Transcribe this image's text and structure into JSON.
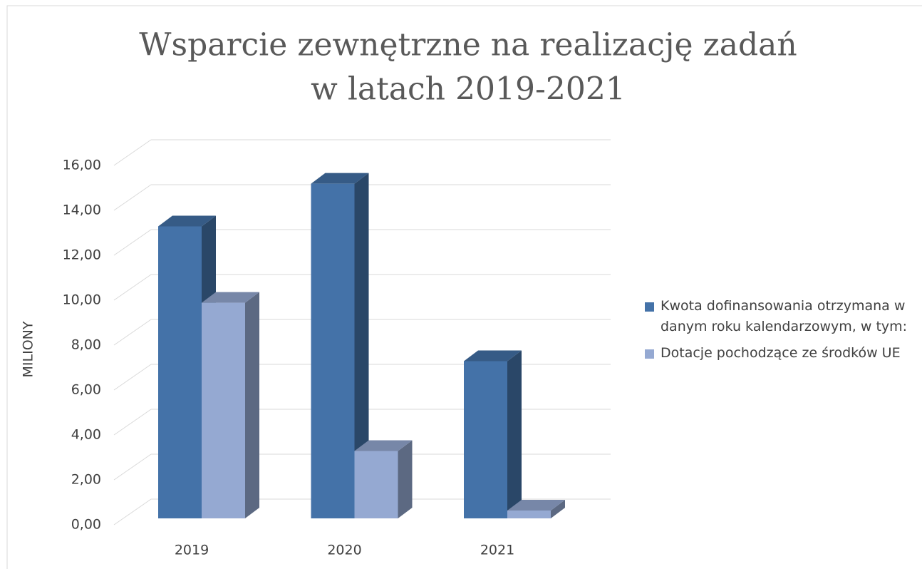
{
  "chart_data": {
    "type": "bar3d",
    "title": [
      "Wsparcie zewnętrzne na realizację zadań",
      "w latach 2019-2021"
    ],
    "y_label": "MILIONY",
    "categories": [
      "2019",
      "2020",
      "2021"
    ],
    "series": [
      {
        "name": "Kwota dofinansowania otrzymana w danym roku kalendarzowym, w tym:",
        "color": "#4472a8",
        "values": [
          13.0,
          14.9,
          7.0
        ]
      },
      {
        "name": "Dotacje pochodzące ze środków UE",
        "color": "#95a9d2",
        "values": [
          9.6,
          3.0,
          0.35
        ]
      }
    ],
    "ylim": [
      0,
      16
    ],
    "yticks": [
      {
        "value": 0,
        "label": "0,00"
      },
      {
        "value": 2,
        "label": "2,00"
      },
      {
        "value": 4,
        "label": "4,00"
      },
      {
        "value": 6,
        "label": "6,00"
      },
      {
        "value": 8,
        "label": "8,00"
      },
      {
        "value": 10,
        "label": "10,00"
      },
      {
        "value": 12,
        "label": "12,00"
      },
      {
        "value": 14,
        "label": "14,00"
      },
      {
        "value": 16,
        "label": "16,00"
      }
    ],
    "grid": true,
    "legend": "right"
  }
}
